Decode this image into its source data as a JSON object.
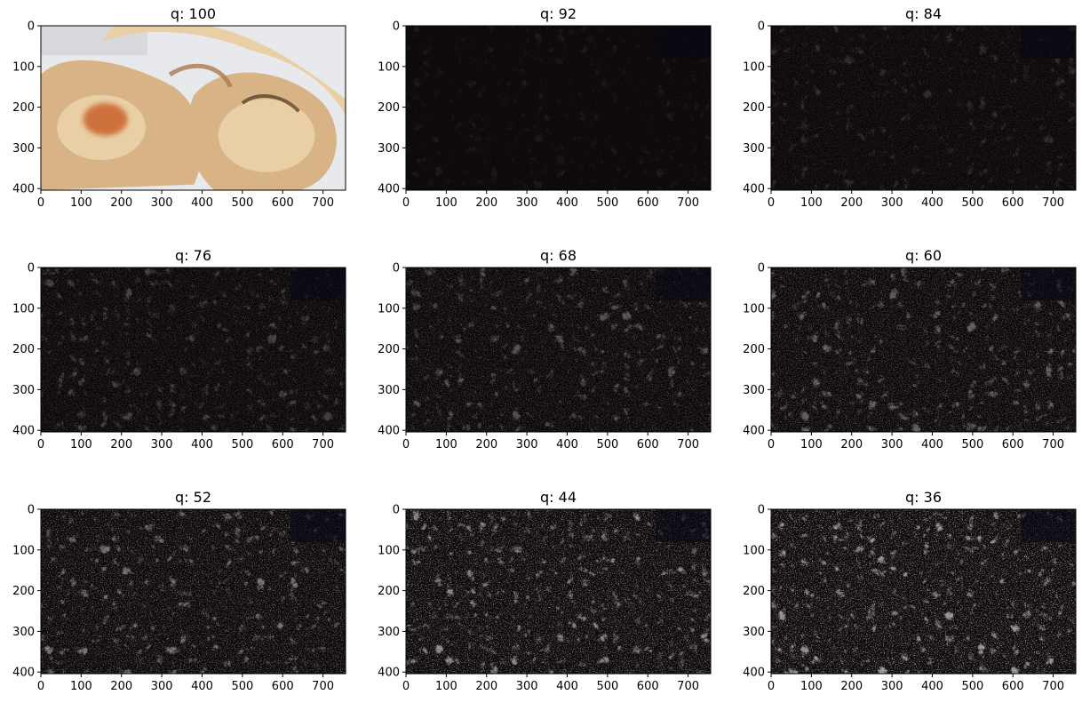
{
  "figure": {
    "layout": {
      "rows": 3,
      "cols": 3
    }
  },
  "chart_data": [
    {
      "type": "image",
      "title": "q: 100",
      "variant": "original-photo",
      "xlim": [
        0,
        756
      ],
      "ylim": [
        404,
        0
      ],
      "xticks": [
        0,
        100,
        200,
        300,
        400,
        500,
        600,
        700
      ],
      "yticks": [
        0,
        100,
        200,
        300,
        400
      ]
    },
    {
      "type": "image",
      "title": "q: 92",
      "variant": "ela-difference",
      "intensity": 0.06,
      "xlim": [
        0,
        756
      ],
      "ylim": [
        404,
        0
      ],
      "xticks": [
        0,
        100,
        200,
        300,
        400,
        500,
        600,
        700
      ],
      "yticks": [
        0,
        100,
        200,
        300,
        400
      ]
    },
    {
      "type": "image",
      "title": "q: 84",
      "variant": "ela-difference",
      "intensity": 0.14,
      "xlim": [
        0,
        756
      ],
      "ylim": [
        404,
        0
      ],
      "xticks": [
        0,
        100,
        200,
        300,
        400,
        500,
        600,
        700
      ],
      "yticks": [
        0,
        100,
        200,
        300,
        400
      ]
    },
    {
      "type": "image",
      "title": "q: 76",
      "variant": "ela-difference",
      "intensity": 0.22,
      "xlim": [
        0,
        756
      ],
      "ylim": [
        404,
        0
      ],
      "xticks": [
        0,
        100,
        200,
        300,
        400,
        500,
        600,
        700
      ],
      "yticks": [
        0,
        100,
        200,
        300,
        400
      ]
    },
    {
      "type": "image",
      "title": "q: 68",
      "variant": "ela-difference",
      "intensity": 0.28,
      "xlim": [
        0,
        756
      ],
      "ylim": [
        404,
        0
      ],
      "xticks": [
        0,
        100,
        200,
        300,
        400,
        500,
        600,
        700
      ],
      "yticks": [
        0,
        100,
        200,
        300,
        400
      ]
    },
    {
      "type": "image",
      "title": "q: 60",
      "variant": "ela-difference",
      "intensity": 0.34,
      "xlim": [
        0,
        756
      ],
      "ylim": [
        404,
        0
      ],
      "xticks": [
        0,
        100,
        200,
        300,
        400,
        500,
        600,
        700
      ],
      "yticks": [
        0,
        100,
        200,
        300,
        400
      ]
    },
    {
      "type": "image",
      "title": "q: 52",
      "variant": "ela-difference",
      "intensity": 0.42,
      "xlim": [
        0,
        756
      ],
      "ylim": [
        404,
        0
      ],
      "xticks": [
        0,
        100,
        200,
        300,
        400,
        500,
        600,
        700
      ],
      "yticks": [
        0,
        100,
        200,
        300,
        400
      ]
    },
    {
      "type": "image",
      "title": "q: 44",
      "variant": "ela-difference",
      "intensity": 0.5,
      "xlim": [
        0,
        756
      ],
      "ylim": [
        404,
        0
      ],
      "xticks": [
        0,
        100,
        200,
        300,
        400,
        500,
        600,
        700
      ],
      "yticks": [
        0,
        100,
        200,
        300,
        400
      ]
    },
    {
      "type": "image",
      "title": "q: 36",
      "variant": "ela-difference",
      "intensity": 0.56,
      "xlim": [
        0,
        756
      ],
      "ylim": [
        404,
        0
      ],
      "xticks": [
        0,
        100,
        200,
        300,
        400,
        500,
        600,
        700
      ],
      "yticks": [
        0,
        100,
        200,
        300,
        400
      ]
    }
  ],
  "colors": {
    "plate": "#e8e9ec",
    "meat-light": "#e9cfa5",
    "meat-mid": "#d7b386",
    "meat-dark": "#a87a4f",
    "skin-crisp": "#c9622a",
    "ela-background": "#0d0809",
    "ela-speckle": "#d9d2d0"
  }
}
